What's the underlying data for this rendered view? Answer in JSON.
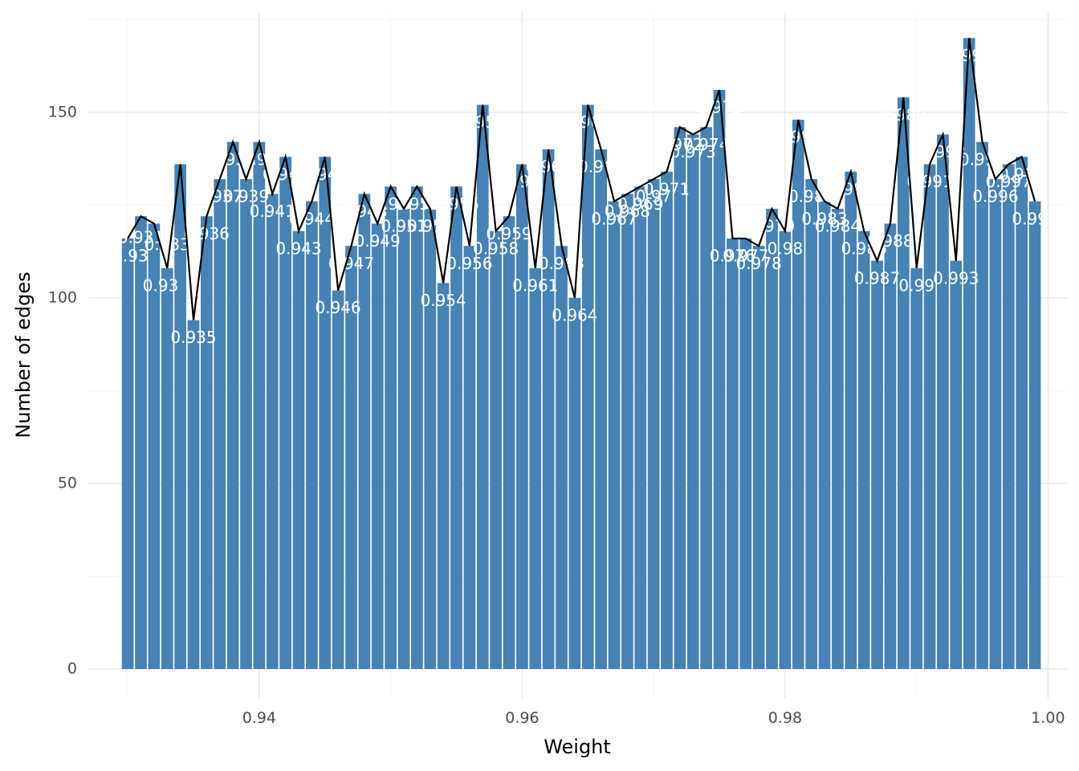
{
  "chart_data": {
    "type": "bar",
    "overlay": "line",
    "title": "",
    "xlabel": "Weight",
    "ylabel": "Number of edges",
    "xlim": [
      0.927,
      1.0015
    ],
    "ylim": [
      -8,
      177
    ],
    "x_ticks": [
      0.94,
      0.96,
      0.98,
      1.0
    ],
    "x_tick_labels": [
      "0.94",
      "0.96",
      "0.98",
      "1.00"
    ],
    "y_ticks": [
      0,
      50,
      100,
      150
    ],
    "y_tick_labels": [
      "0",
      "50",
      "100",
      "150"
    ],
    "bar_width": 0.0009,
    "grid": true,
    "legend": "none",
    "colors": {
      "bar": "#4682b4",
      "line": "#000000",
      "label": "#ffffff"
    },
    "x": [
      0.93,
      0.931,
      0.932,
      0.933,
      0.934,
      0.935,
      0.936,
      0.937,
      0.938,
      0.939,
      0.94,
      0.941,
      0.942,
      0.943,
      0.944,
      0.945,
      0.946,
      0.947,
      0.948,
      0.949,
      0.95,
      0.951,
      0.952,
      0.953,
      0.954,
      0.955,
      0.956,
      0.957,
      0.958,
      0.959,
      0.96,
      0.961,
      0.962,
      0.963,
      0.964,
      0.965,
      0.966,
      0.967,
      0.968,
      0.969,
      0.97,
      0.971,
      0.972,
      0.973,
      0.974,
      0.975,
      0.976,
      0.977,
      0.978,
      0.979,
      0.98,
      0.981,
      0.982,
      0.983,
      0.984,
      0.985,
      0.986,
      0.987,
      0.988,
      0.989,
      0.99,
      0.991,
      0.992,
      0.993,
      0.994,
      0.995,
      0.996,
      0.997,
      0.998,
      0.999
    ],
    "values": [
      116,
      122,
      120,
      108,
      136,
      94,
      122,
      132,
      142,
      132,
      142,
      128,
      138,
      118,
      126,
      138,
      102,
      114,
      128,
      120,
      130,
      124,
      130,
      124,
      104,
      130,
      114,
      152,
      118,
      122,
      136,
      108,
      140,
      114,
      100,
      152,
      140,
      126,
      128,
      130,
      132,
      134,
      146,
      144,
      146,
      156,
      116,
      116,
      114,
      124,
      118,
      148,
      132,
      126,
      124,
      134,
      118,
      110,
      120,
      154,
      108,
      136,
      144,
      110,
      170,
      142,
      132,
      136,
      138,
      126
    ],
    "bar_labels": [
      {
        "text": "0.93",
        "x": 0.9302,
        "y": 111
      },
      {
        "text": "0.931",
        "x": 0.931,
        "y": 116
      },
      {
        "text": "0.93",
        "x": 0.9325,
        "y": 103
      },
      {
        "text": "0.933",
        "x": 0.933,
        "y": 114
      },
      {
        "text": "0.935",
        "x": 0.935,
        "y": 89
      },
      {
        "text": "0.936",
        "x": 0.936,
        "y": 117
      },
      {
        "text": "0.937",
        "x": 0.937,
        "y": 127
      },
      {
        "text": "0.938",
        "x": 0.938,
        "y": 137
      },
      {
        "text": "0.939",
        "x": 0.939,
        "y": 127
      },
      {
        "text": "0.94",
        "x": 0.94,
        "y": 137
      },
      {
        "text": "0.941",
        "x": 0.941,
        "y": 123
      },
      {
        "text": "0.942",
        "x": 0.942,
        "y": 133
      },
      {
        "text": "0.943",
        "x": 0.943,
        "y": 113
      },
      {
        "text": "0.944",
        "x": 0.944,
        "y": 121
      },
      {
        "text": "0.945",
        "x": 0.945,
        "y": 133
      },
      {
        "text": "0.946",
        "x": 0.946,
        "y": 97
      },
      {
        "text": "0.947",
        "x": 0.947,
        "y": 109
      },
      {
        "text": "0.948",
        "x": 0.948,
        "y": 123
      },
      {
        "text": "0.949",
        "x": 0.949,
        "y": 115
      },
      {
        "text": "0.95",
        "x": 0.95,
        "y": 125
      },
      {
        "text": "0.951",
        "x": 0.951,
        "y": 119
      },
      {
        "text": "0.952",
        "x": 0.952,
        "y": 125
      },
      {
        "text": "0.953",
        "x": 0.953,
        "y": 119
      },
      {
        "text": "0.954",
        "x": 0.954,
        "y": 99
      },
      {
        "text": "0.955",
        "x": 0.955,
        "y": 125
      },
      {
        "text": "0.956",
        "x": 0.956,
        "y": 109
      },
      {
        "text": "0.957",
        "x": 0.957,
        "y": 147
      },
      {
        "text": "0.958",
        "x": 0.958,
        "y": 113
      },
      {
        "text": "0.959",
        "x": 0.959,
        "y": 117
      },
      {
        "text": "0.96",
        "x": 0.96,
        "y": 131
      },
      {
        "text": "0.961",
        "x": 0.961,
        "y": 103
      },
      {
        "text": "0.962",
        "x": 0.962,
        "y": 135
      },
      {
        "text": "0.963",
        "x": 0.963,
        "y": 109
      },
      {
        "text": "0.964",
        "x": 0.964,
        "y": 95
      },
      {
        "text": "0.965",
        "x": 0.965,
        "y": 147
      },
      {
        "text": "0.966",
        "x": 0.966,
        "y": 135
      },
      {
        "text": "0.967",
        "x": 0.967,
        "y": 121
      },
      {
        "text": "0.968",
        "x": 0.968,
        "y": 123
      },
      {
        "text": "0.969",
        "x": 0.969,
        "y": 125
      },
      {
        "text": "0.97",
        "x": 0.97,
        "y": 127
      },
      {
        "text": "0.971",
        "x": 0.971,
        "y": 129
      },
      {
        "text": "0.972",
        "x": 0.972,
        "y": 141
      },
      {
        "text": "0.973",
        "x": 0.973,
        "y": 139
      },
      {
        "text": "0.974",
        "x": 0.974,
        "y": 141
      },
      {
        "text": "0.975",
        "x": 0.975,
        "y": 151
      },
      {
        "text": "0.976",
        "x": 0.976,
        "y": 111
      },
      {
        "text": "0.977",
        "x": 0.977,
        "y": 111
      },
      {
        "text": "0.978",
        "x": 0.978,
        "y": 109
      },
      {
        "text": "0.979",
        "x": 0.979,
        "y": 119
      },
      {
        "text": "0.98",
        "x": 0.98,
        "y": 113
      },
      {
        "text": "0.981",
        "x": 0.981,
        "y": 143
      },
      {
        "text": "0.982",
        "x": 0.982,
        "y": 127
      },
      {
        "text": "0.983",
        "x": 0.983,
        "y": 121
      },
      {
        "text": "0.984",
        "x": 0.984,
        "y": 119
      },
      {
        "text": "0.985",
        "x": 0.985,
        "y": 129
      },
      {
        "text": "0.986",
        "x": 0.986,
        "y": 113
      },
      {
        "text": "0.987",
        "x": 0.987,
        "y": 105
      },
      {
        "text": "0.988",
        "x": 0.988,
        "y": 115
      },
      {
        "text": "0.989",
        "x": 0.989,
        "y": 149
      },
      {
        "text": "0.99",
        "x": 0.99,
        "y": 103
      },
      {
        "text": "0.991",
        "x": 0.991,
        "y": 131
      },
      {
        "text": "0.992",
        "x": 0.992,
        "y": 139
      },
      {
        "text": "0.993",
        "x": 0.993,
        "y": 105
      },
      {
        "text": "0.994",
        "x": 0.994,
        "y": 165
      },
      {
        "text": "0.995",
        "x": 0.995,
        "y": 137
      },
      {
        "text": "0.996",
        "x": 0.996,
        "y": 127
      },
      {
        "text": "0.997",
        "x": 0.997,
        "y": 131
      },
      {
        "text": "0.998",
        "x": 0.998,
        "y": 133
      },
      {
        "text": "0.999",
        "x": 0.999,
        "y": 121
      }
    ]
  }
}
